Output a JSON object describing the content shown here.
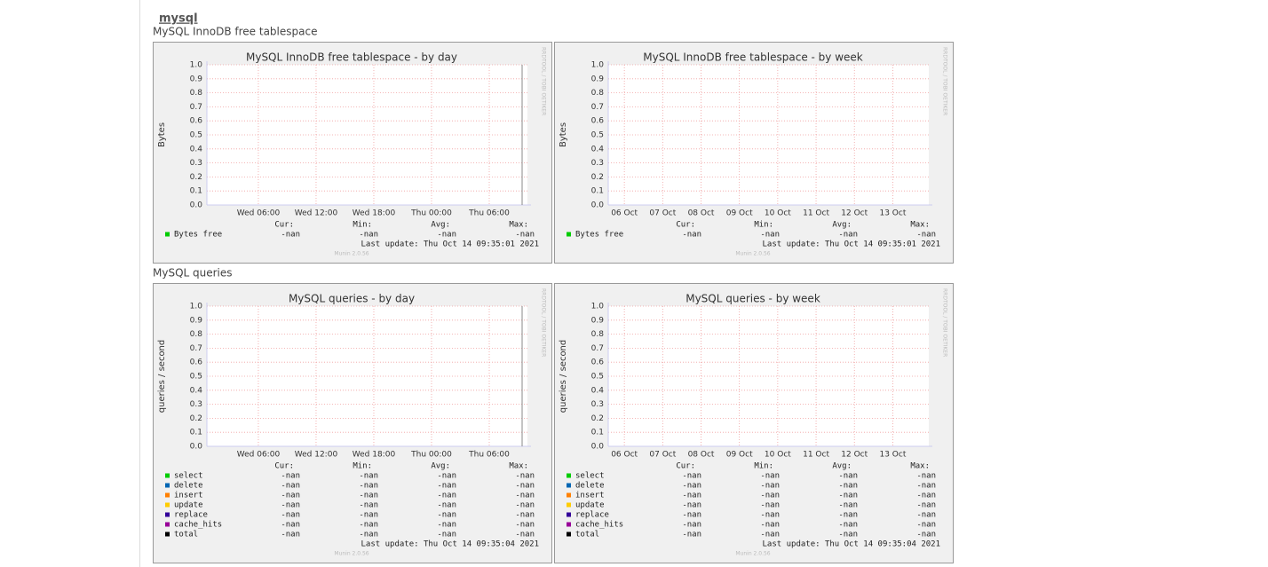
{
  "header": "mysql",
  "groups": [
    {
      "title": "MySQL InnoDB free tablespace",
      "graphs": [
        {
          "type": "line",
          "title": "MySQL InnoDB free tablespace - by day",
          "ylabel": "Bytes",
          "ylim": [
            0,
            1
          ],
          "yticks": [
            {
              "value": 0,
              "label": "0.0"
            },
            0.1,
            0.2,
            0.3,
            0.4,
            0.5,
            0.6,
            0.7,
            0.8,
            0.9,
            {
              "value": 1,
              "label": "1.0"
            }
          ],
          "xlim": [
            0.65,
            33.97
          ],
          "xticks": [
            {
              "value": 6,
              "label": "Wed 06:00"
            },
            {
              "value": 12,
              "label": "Wed 12:00"
            },
            {
              "value": 18,
              "label": "Wed 18:00"
            },
            {
              "value": 24,
              "label": "Thu 00:00"
            },
            {
              "value": 30,
              "label": "Thu 06:00"
            }
          ],
          "legend_header": [
            "Cur:",
            "Min:",
            "Avg:",
            "Max:"
          ],
          "series": [
            {
              "name": "Bytes free",
              "color": "#00cc00",
              "stats": [
                "-nan",
                "-nan",
                "-nan",
                "-nan"
              ]
            }
          ],
          "last_update": "Last update: Thu Oct 14 09:35:01 2021",
          "version": "Munin 2.0.56",
          "watermark": "RRDTOOL / TOBI OETIKER"
        },
        {
          "type": "line",
          "title": "MySQL InnoDB free tablespace - by week",
          "ylabel": "Bytes",
          "ylim": [
            0,
            1
          ],
          "yticks": [
            {
              "value": 0,
              "label": "0.0"
            },
            0.1,
            0.2,
            0.3,
            0.4,
            0.5,
            0.6,
            0.7,
            0.8,
            0.9,
            {
              "value": 1,
              "label": "1.0"
            }
          ],
          "xlim": [
            5.58,
            13.94
          ],
          "xticks": [
            {
              "value": 6,
              "label": "06 Oct"
            },
            {
              "value": 7,
              "label": "07 Oct"
            },
            {
              "value": 8,
              "label": "08 Oct"
            },
            {
              "value": 9,
              "label": "09 Oct"
            },
            {
              "value": 10,
              "label": "10 Oct"
            },
            {
              "value": 11,
              "label": "11 Oct"
            },
            {
              "value": 12,
              "label": "12 Oct"
            },
            {
              "value": 13,
              "label": "13 Oct"
            }
          ],
          "legend_header": [
            "Cur:",
            "Min:",
            "Avg:",
            "Max:"
          ],
          "series": [
            {
              "name": "Bytes free",
              "color": "#00cc00",
              "stats": [
                "-nan",
                "-nan",
                "-nan",
                "-nan"
              ]
            }
          ],
          "last_update": "Last update: Thu Oct 14 09:35:01 2021",
          "version": "Munin 2.0.56",
          "watermark": "RRDTOOL / TOBI OETIKER"
        }
      ]
    },
    {
      "title": "MySQL queries",
      "graphs": [
        {
          "type": "line",
          "title": "MySQL queries - by day",
          "ylabel": "queries / second",
          "ylim": [
            0,
            1
          ],
          "yticks": [
            {
              "value": 0,
              "label": "0.0"
            },
            0.1,
            0.2,
            0.3,
            0.4,
            0.5,
            0.6,
            0.7,
            0.8,
            0.9,
            {
              "value": 1,
              "label": "1.0"
            }
          ],
          "xlim": [
            0.65,
            33.97
          ],
          "xticks": [
            {
              "value": 6,
              "label": "Wed 06:00"
            },
            {
              "value": 12,
              "label": "Wed 12:00"
            },
            {
              "value": 18,
              "label": "Wed 18:00"
            },
            {
              "value": 24,
              "label": "Thu 00:00"
            },
            {
              "value": 30,
              "label": "Thu 06:00"
            }
          ],
          "legend_header": [
            "Cur:",
            "Min:",
            "Avg:",
            "Max:"
          ],
          "series": [
            {
              "name": "select",
              "color": "#00cc00",
              "stats": [
                "-nan",
                "-nan",
                "-nan",
                "-nan"
              ]
            },
            {
              "name": "delete",
              "color": "#0066b3",
              "stats": [
                "-nan",
                "-nan",
                "-nan",
                "-nan"
              ]
            },
            {
              "name": "insert",
              "color": "#ff8000",
              "stats": [
                "-nan",
                "-nan",
                "-nan",
                "-nan"
              ]
            },
            {
              "name": "update",
              "color": "#ffcc00",
              "stats": [
                "-nan",
                "-nan",
                "-nan",
                "-nan"
              ]
            },
            {
              "name": "replace",
              "color": "#330099",
              "stats": [
                "-nan",
                "-nan",
                "-nan",
                "-nan"
              ]
            },
            {
              "name": "cache_hits",
              "color": "#990099",
              "stats": [
                "-nan",
                "-nan",
                "-nan",
                "-nan"
              ]
            },
            {
              "name": "total",
              "color": "#000000",
              "stats": [
                "-nan",
                "-nan",
                "-nan",
                "-nan"
              ]
            }
          ],
          "last_update": "Last update: Thu Oct 14 09:35:04 2021",
          "version": "Munin 2.0.56",
          "watermark": "RRDTOOL / TOBI OETIKER"
        },
        {
          "type": "line",
          "title": "MySQL queries - by week",
          "ylabel": "queries / second",
          "ylim": [
            0,
            1
          ],
          "yticks": [
            {
              "value": 0,
              "label": "0.0"
            },
            0.1,
            0.2,
            0.3,
            0.4,
            0.5,
            0.6,
            0.7,
            0.8,
            0.9,
            {
              "value": 1,
              "label": "1.0"
            }
          ],
          "xlim": [
            5.58,
            13.94
          ],
          "xticks": [
            {
              "value": 6,
              "label": "06 Oct"
            },
            {
              "value": 7,
              "label": "07 Oct"
            },
            {
              "value": 8,
              "label": "08 Oct"
            },
            {
              "value": 9,
              "label": "09 Oct"
            },
            {
              "value": 10,
              "label": "10 Oct"
            },
            {
              "value": 11,
              "label": "11 Oct"
            },
            {
              "value": 12,
              "label": "12 Oct"
            },
            {
              "value": 13,
              "label": "13 Oct"
            }
          ],
          "legend_header": [
            "Cur:",
            "Min:",
            "Avg:",
            "Max:"
          ],
          "series": [
            {
              "name": "select",
              "color": "#00cc00",
              "stats": [
                "-nan",
                "-nan",
                "-nan",
                "-nan"
              ]
            },
            {
              "name": "delete",
              "color": "#0066b3",
              "stats": [
                "-nan",
                "-nan",
                "-nan",
                "-nan"
              ]
            },
            {
              "name": "insert",
              "color": "#ff8000",
              "stats": [
                "-nan",
                "-nan",
                "-nan",
                "-nan"
              ]
            },
            {
              "name": "update",
              "color": "#ffcc00",
              "stats": [
                "-nan",
                "-nan",
                "-nan",
                "-nan"
              ]
            },
            {
              "name": "replace",
              "color": "#330099",
              "stats": [
                "-nan",
                "-nan",
                "-nan",
                "-nan"
              ]
            },
            {
              "name": "cache_hits",
              "color": "#990099",
              "stats": [
                "-nan",
                "-nan",
                "-nan",
                "-nan"
              ]
            },
            {
              "name": "total",
              "color": "#000000",
              "stats": [
                "-nan",
                "-nan",
                "-nan",
                "-nan"
              ]
            }
          ],
          "last_update": "Last update: Thu Oct 14 09:35:04 2021",
          "version": "Munin 2.0.56",
          "watermark": "RRDTOOL / TOBI OETIKER"
        }
      ]
    }
  ]
}
